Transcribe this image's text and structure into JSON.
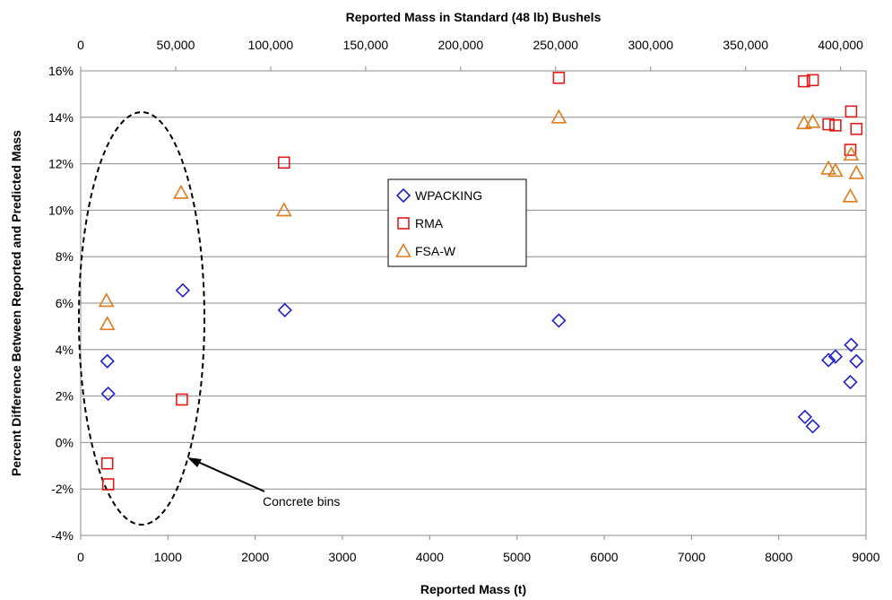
{
  "chart_data": {
    "type": "scatter",
    "title": "",
    "x_bottom": {
      "label": "Reported Mass (t)",
      "range": [
        0,
        9000
      ],
      "ticks": [
        0,
        1000,
        2000,
        3000,
        4000,
        5000,
        6000,
        7000,
        8000,
        9000
      ],
      "tick_labels": [
        "0",
        "1000",
        "2000",
        "3000",
        "4000",
        "5000",
        "6000",
        "7000",
        "8000",
        "9000"
      ]
    },
    "x_top": {
      "label": "Reported Mass in Standard (48 lb) Bushels",
      "ticks": [
        0,
        50000,
        100000,
        150000,
        200000,
        250000,
        300000,
        350000,
        400000
      ],
      "tick_labels": [
        "0",
        "50,000",
        "100,000",
        "150,000",
        "200,000",
        "250,000",
        "300,000",
        "350,000",
        "400,000"
      ],
      "bushels_per_tonne": 45.93
    },
    "y": {
      "label": "Percent Difference Between Reported and Predicted Mass",
      "range": [
        -4,
        16
      ],
      "ticks": [
        -4,
        -2,
        0,
        2,
        4,
        6,
        8,
        10,
        12,
        14,
        16
      ],
      "tick_labels": [
        "-4%",
        "-2%",
        "0%",
        "2%",
        "4%",
        "6%",
        "8%",
        "10%",
        "12%",
        "14%",
        "16%"
      ]
    },
    "grid": "horizontal",
    "legend": {
      "position": "center",
      "entries": [
        "WPACKING",
        "RMA",
        "FSA-W"
      ]
    },
    "series": [
      {
        "name": "WPACKING",
        "marker": "diamond",
        "color": "#1f1fd6",
        "points": [
          [
            305,
            3.5
          ],
          [
            315,
            2.1
          ],
          [
            1170,
            6.55
          ],
          [
            2340,
            5.7
          ],
          [
            5480,
            5.25
          ],
          [
            8300,
            1.1
          ],
          [
            8390,
            0.7
          ],
          [
            8570,
            3.55
          ],
          [
            8650,
            3.7
          ],
          [
            8830,
            4.2
          ],
          [
            8820,
            2.6
          ],
          [
            8890,
            3.5
          ]
        ]
      },
      {
        "name": "RMA",
        "marker": "square",
        "color": "#e31a1c",
        "points": [
          [
            305,
            -0.9
          ],
          [
            315,
            -1.8
          ],
          [
            1160,
            1.85
          ],
          [
            2330,
            12.05
          ],
          [
            5480,
            15.7
          ],
          [
            8290,
            15.55
          ],
          [
            8390,
            15.6
          ],
          [
            8570,
            13.7
          ],
          [
            8650,
            13.65
          ],
          [
            8830,
            14.25
          ],
          [
            8820,
            12.6
          ],
          [
            8890,
            13.5
          ]
        ]
      },
      {
        "name": "FSA-W",
        "marker": "triangle",
        "color": "#e07b1a",
        "points": [
          [
            295,
            6.1
          ],
          [
            305,
            5.1
          ],
          [
            1150,
            10.75
          ],
          [
            2330,
            10.0
          ],
          [
            5480,
            14.0
          ],
          [
            8290,
            13.75
          ],
          [
            8390,
            13.8
          ],
          [
            8570,
            11.8
          ],
          [
            8650,
            11.7
          ],
          [
            8830,
            12.4
          ],
          [
            8820,
            10.6
          ],
          [
            8890,
            11.6
          ]
        ]
      }
    ],
    "annotations": [
      {
        "text": "Concrete bins",
        "shape": "dashed-ellipse",
        "arrow": true
      }
    ]
  }
}
